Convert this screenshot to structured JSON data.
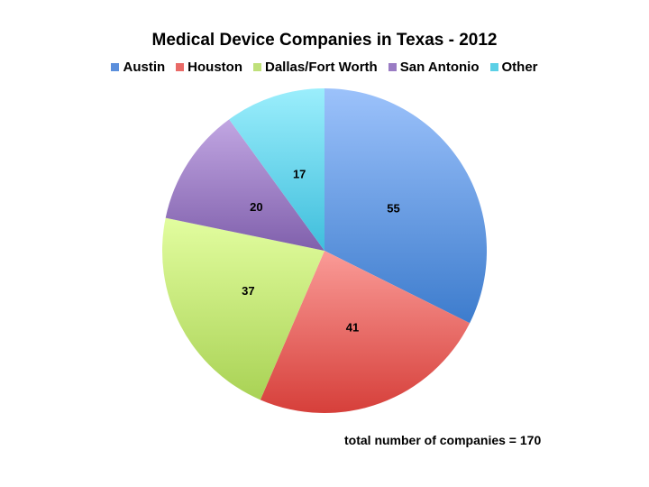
{
  "chart_data": {
    "type": "pie",
    "title": "Medical Device Companies in Texas - 2012",
    "categories": [
      "Austin",
      "Houston",
      "Dallas/Fort Worth",
      "San Antonio",
      "Other"
    ],
    "values": [
      55,
      41,
      37,
      20,
      17
    ],
    "colors": [
      "#5b8fdc",
      "#e96a67",
      "#c2e27a",
      "#9a7cc4",
      "#5bd0e6"
    ],
    "legend_position": "top",
    "annotation": "total number of companies = 170",
    "total": 170
  },
  "title": "Medical Device Companies in Texas - 2012",
  "legend": [
    {
      "label": "Austin",
      "color": "#5b8fdc"
    },
    {
      "label": "Houston",
      "color": "#e96a67"
    },
    {
      "label": "Dallas/Fort Worth",
      "color": "#bfe07a"
    },
    {
      "label": "San Antonio",
      "color": "#9a7cc4"
    },
    {
      "label": "Other",
      "color": "#5bd0e6"
    }
  ],
  "labels": [
    "55",
    "41",
    "37",
    "20",
    "17"
  ],
  "note": "total number of companies = 170"
}
